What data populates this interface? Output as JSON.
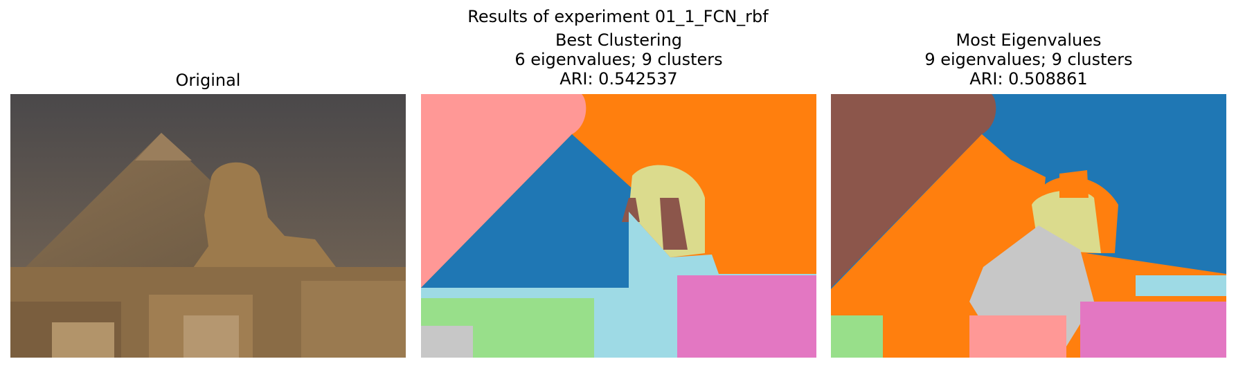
{
  "figure_title": "Results of experiment 01_1_FCN_rbf",
  "panels": [
    {
      "title_lines": [
        "Original"
      ]
    },
    {
      "title_lines": [
        "Best Clustering",
        "6 eigenvalues; 9 clusters",
        "ARI: 0.542537"
      ]
    },
    {
      "title_lines": [
        "Most Eigenvalues",
        "9 eigenvalues; 9 clusters",
        "ARI: 0.508861"
      ]
    }
  ],
  "colors": {
    "sky_top": "#4a484a",
    "sky_bottom": "#7a6a58",
    "stone": "#8a6e4a",
    "sand": "#a68656",
    "c_blue": "#1f77b4",
    "c_orange": "#ff7f0e",
    "c_pink": "#ff9896",
    "c_brown": "#8c564b",
    "c_lightblue": "#9edae5",
    "c_olive": "#dbdb8d",
    "c_green": "#98df8a",
    "c_magenta": "#e377c2",
    "c_gray": "#c7c7c7"
  }
}
